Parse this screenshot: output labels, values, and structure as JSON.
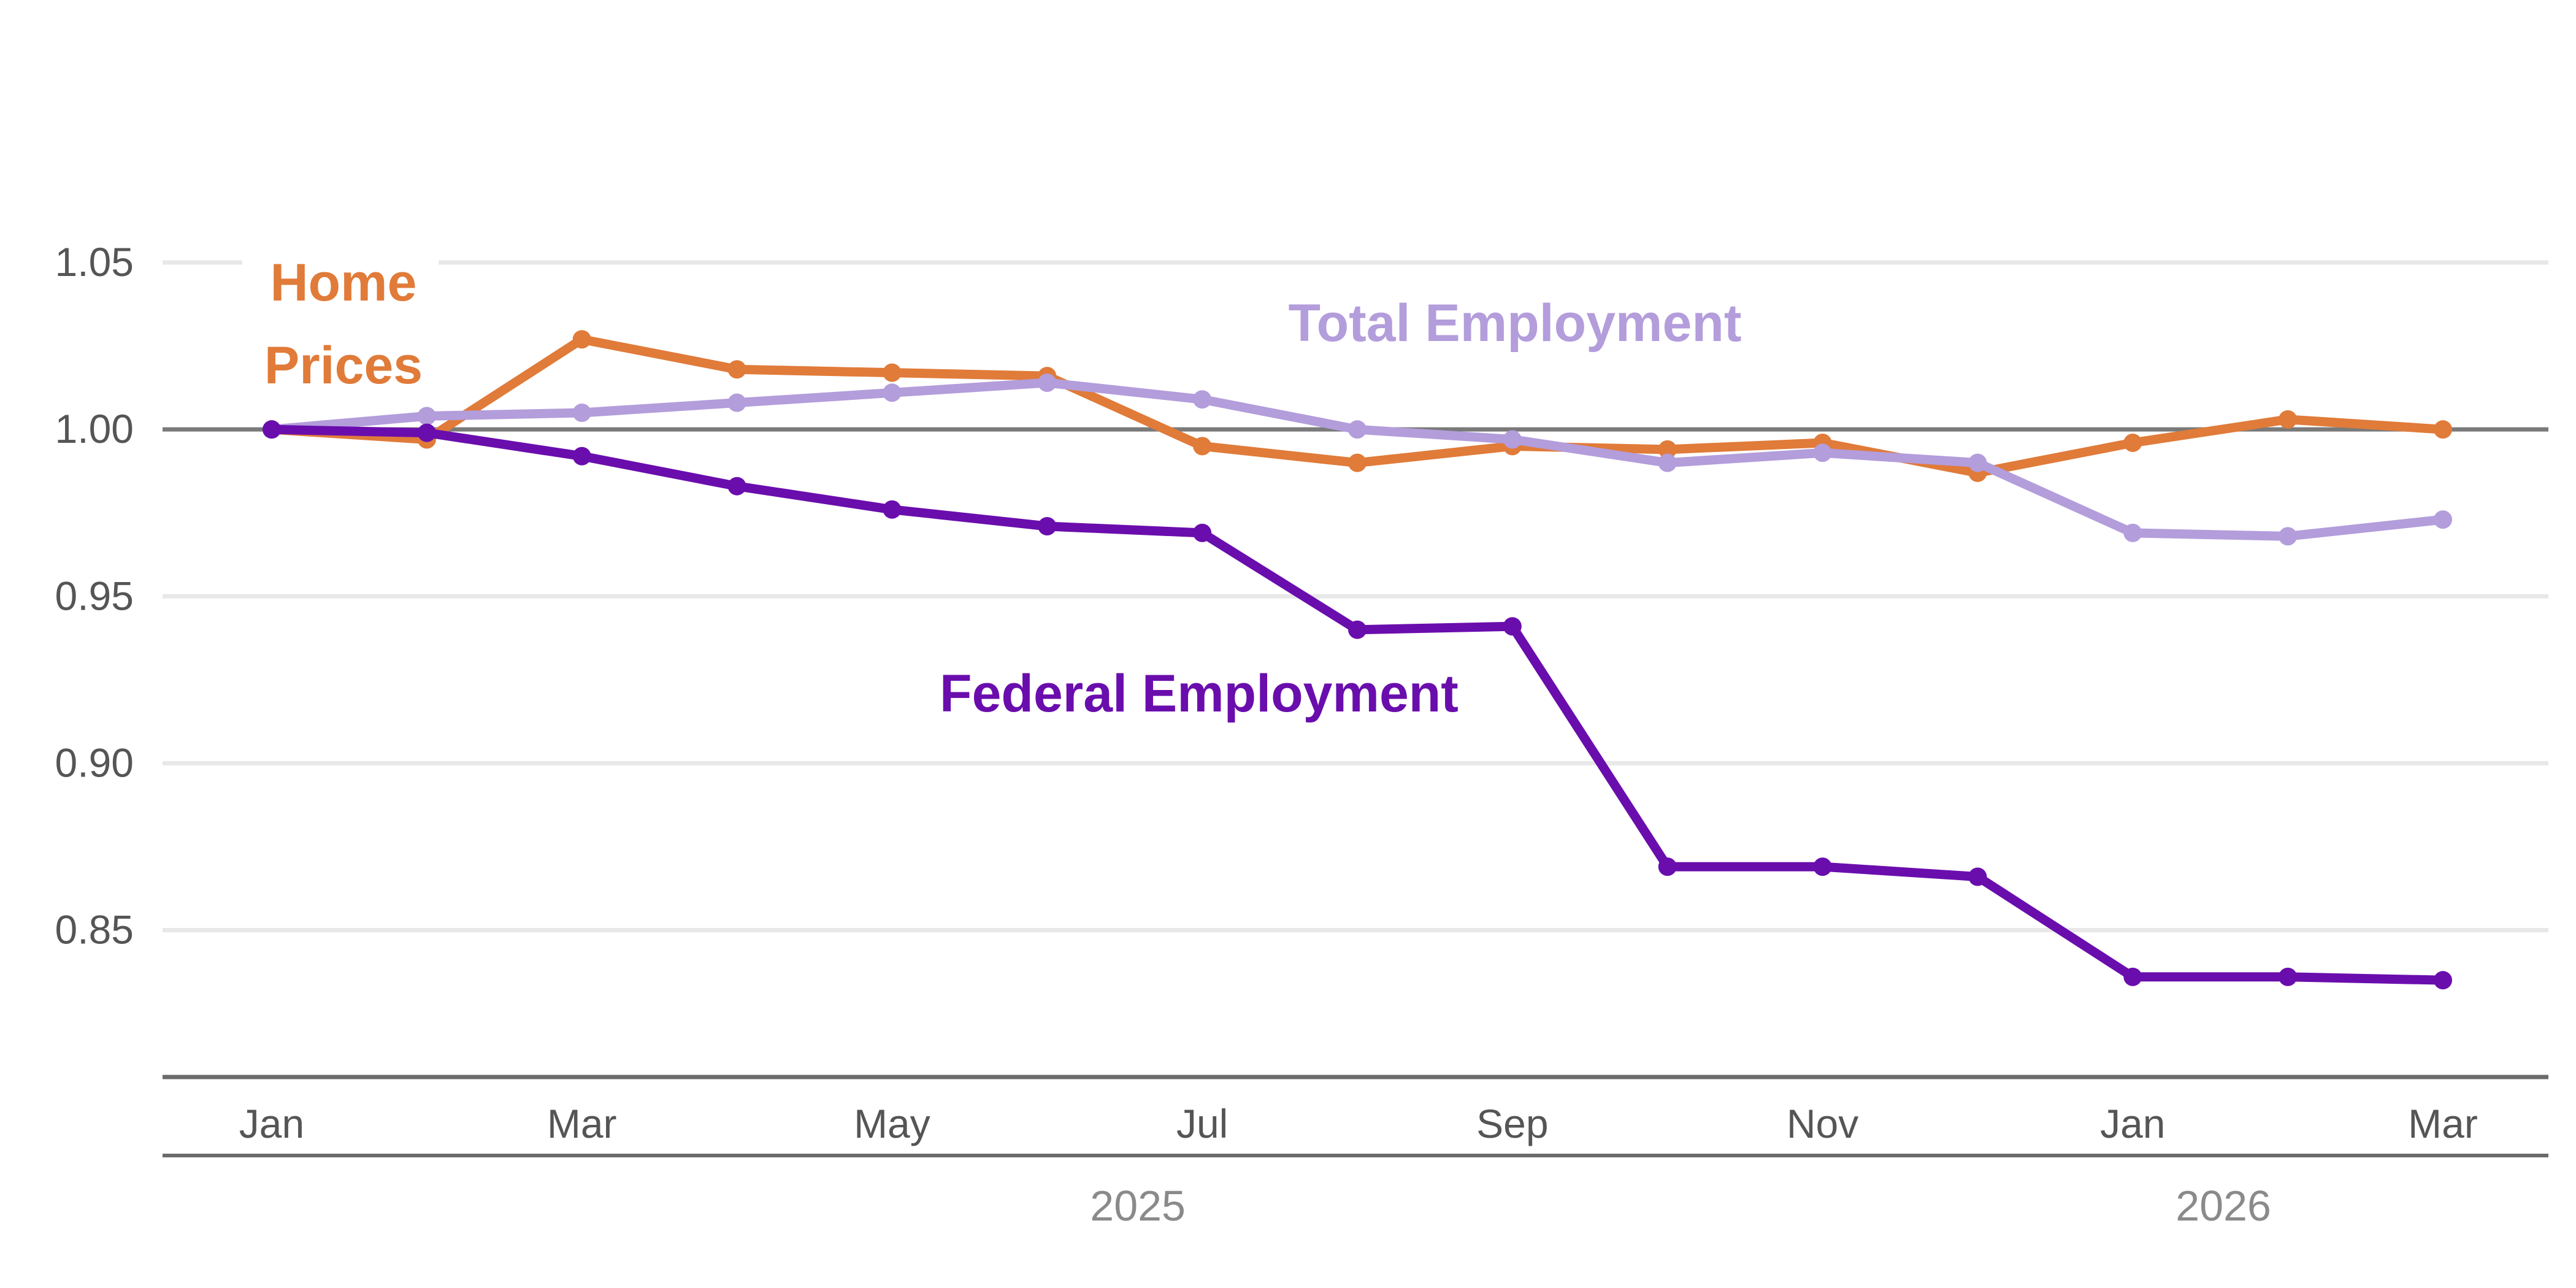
{
  "chart_data": {
    "type": "line",
    "title": "",
    "xlabel": "",
    "ylabel": "",
    "ylim": [
      0.806,
      1.075
    ],
    "y_ticks": [
      "1.05",
      "1.00",
      "0.95",
      "0.90",
      "0.85"
    ],
    "y_tick_values": [
      1.05,
      1.0,
      0.95,
      0.9,
      0.85
    ],
    "reference_line": 1.0,
    "grid": true,
    "x": [
      "2025-01",
      "2025-02",
      "2025-03",
      "2025-04",
      "2025-05",
      "2025-06",
      "2025-07",
      "2025-08",
      "2025-09",
      "2025-10",
      "2025-11",
      "2025-12",
      "2026-01",
      "2026-02",
      "2026-03"
    ],
    "x_tick_labels": [
      {
        "x": "2025-01",
        "label": "Jan"
      },
      {
        "x": "2025-03",
        "label": "Mar"
      },
      {
        "x": "2025-05",
        "label": "May"
      },
      {
        "x": "2025-07",
        "label": "Jul"
      },
      {
        "x": "2025-09",
        "label": "Sep"
      },
      {
        "x": "2025-11",
        "label": "Nov"
      },
      {
        "x": "2026-01",
        "label": "Jan"
      },
      {
        "x": "2026-03",
        "label": "Mar"
      }
    ],
    "year_labels": [
      {
        "label": "2025",
        "x": "2025-07"
      },
      {
        "label": "2026",
        "x": "2026-02"
      }
    ],
    "series": [
      {
        "name": "Home Prices",
        "name_lines": [
          "Home",
          "Prices"
        ],
        "color": "#E07B39",
        "values": [
          1.0,
          0.997,
          1.027,
          1.018,
          1.017,
          1.016,
          0.995,
          0.99,
          0.995,
          0.994,
          0.996,
          0.987,
          0.996,
          1.003,
          1.0
        ]
      },
      {
        "name": "Total Employment",
        "color": "#B39DDB",
        "values": [
          1.0,
          1.004,
          1.005,
          1.008,
          1.011,
          1.014,
          1.009,
          1.0,
          0.997,
          0.99,
          0.993,
          0.99,
          0.969,
          0.968,
          0.973
        ]
      },
      {
        "name": "Federal Employment",
        "color": "#6A0DAD",
        "values": [
          1.0,
          0.999,
          0.992,
          0.983,
          0.976,
          0.971,
          0.969,
          0.94,
          0.941,
          0.869,
          0.869,
          0.866,
          0.836,
          0.836,
          0.835
        ]
      }
    ]
  }
}
